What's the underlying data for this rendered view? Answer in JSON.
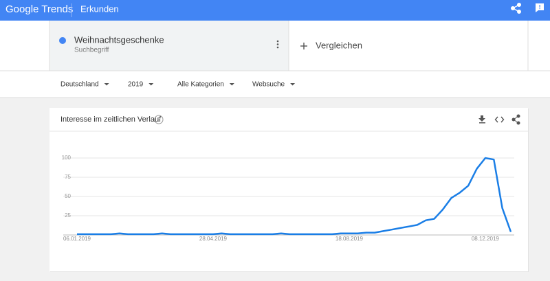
{
  "header": {
    "logo": "Google Trends",
    "section": "Erkunden"
  },
  "search": {
    "term": "Weihnachtsgeschenke",
    "type": "Suchbegriff",
    "compare": "Vergleichen"
  },
  "filters": [
    "Deutschland",
    "2019",
    "Alle Kategorien",
    "Websuche"
  ],
  "chart_data": {
    "type": "line",
    "title": "Interesse im zeitlichen Verlauf",
    "categories": [
      "06.01.2019",
      null,
      null,
      null,
      null,
      null,
      null,
      null,
      null,
      null,
      null,
      null,
      null,
      null,
      null,
      null,
      "28.04.2019",
      null,
      null,
      null,
      null,
      null,
      null,
      null,
      null,
      null,
      null,
      null,
      null,
      null,
      null,
      null,
      "18.08.2019",
      null,
      null,
      null,
      null,
      null,
      null,
      null,
      null,
      null,
      null,
      null,
      null,
      null,
      null,
      null,
      "08.12.2019",
      null,
      null,
      null
    ],
    "values": [
      1,
      1,
      1,
      1,
      1,
      2,
      1,
      1,
      1,
      1,
      2,
      1,
      1,
      1,
      1,
      1,
      1,
      2,
      1,
      1,
      1,
      1,
      1,
      1,
      2,
      1,
      1,
      1,
      1,
      1,
      1,
      2,
      2,
      2,
      3,
      3,
      5,
      7,
      9,
      11,
      13,
      19,
      21,
      33,
      48,
      55,
      64,
      86,
      100,
      98,
      35,
      4
    ],
    "color": "#1a7ee6",
    "ylim": [
      0,
      100
    ],
    "yticks": [
      25,
      50,
      75,
      100
    ],
    "grid": true
  }
}
